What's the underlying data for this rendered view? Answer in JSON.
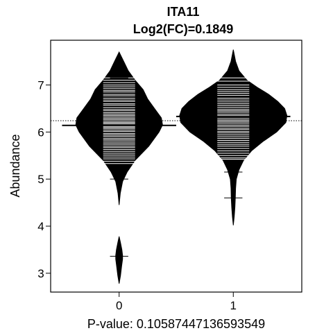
{
  "chart_data": {
    "type": "beanplot",
    "title": "ITA11",
    "subtitle": "Log2(FC)=0.1849",
    "xlabel": "P-value: 0.10587447136593549",
    "ylabel": "Abundance",
    "categories": [
      "0",
      "1"
    ],
    "ylim": [
      2.6,
      7.95
    ],
    "xlim": [
      -0.6,
      1.6
    ],
    "yticks": [
      3,
      4,
      5,
      6,
      7
    ],
    "overall_mean": 6.24,
    "colors": {
      "bean": "#000000",
      "background": "#ffffff",
      "observation_line": "#ffffff"
    },
    "beans": [
      {
        "group": "0",
        "mean": 6.14,
        "segments": [
          {
            "profile": [
              [
                2.78,
                0
              ],
              [
                2.95,
                0.012
              ],
              [
                3.15,
                0.022
              ],
              [
                3.3,
                0.03
              ],
              [
                3.38,
                0.03
              ],
              [
                3.5,
                0.024
              ],
              [
                3.65,
                0.012
              ],
              [
                3.78,
                0
              ]
            ]
          },
          {
            "profile": [
              [
                4.45,
                0
              ],
              [
                4.7,
                0.01
              ],
              [
                4.95,
                0.03
              ],
              [
                5.15,
                0.07
              ],
              [
                5.4,
                0.14
              ],
              [
                5.7,
                0.26
              ],
              [
                6.0,
                0.35
              ],
              [
                6.15,
                0.38
              ],
              [
                6.3,
                0.37
              ],
              [
                6.5,
                0.31
              ],
              [
                6.7,
                0.25
              ],
              [
                6.9,
                0.21
              ],
              [
                7.1,
                0.14
              ],
              [
                7.3,
                0.08
              ],
              [
                7.5,
                0.04
              ],
              [
                7.7,
                0
              ]
            ]
          }
        ],
        "observations": [
          7.15,
          7.1,
          7.05,
          7.0,
          6.96,
          6.92,
          6.88,
          6.85,
          6.8,
          6.77,
          6.72,
          6.68,
          6.65,
          6.6,
          6.57,
          6.52,
          6.48,
          6.45,
          6.41,
          6.38,
          6.35,
          6.32,
          6.29,
          6.26,
          6.23,
          6.2,
          6.18,
          6.15,
          6.12,
          6.1,
          6.07,
          6.04,
          6.01,
          5.97,
          5.94,
          5.91,
          5.87,
          5.84,
          5.81,
          5.77,
          5.74,
          5.7,
          5.67,
          5.63,
          5.59,
          5.55,
          5.51,
          5.47,
          5.43,
          5.38,
          5.33
        ],
        "marks": [
          7.15,
          5.0,
          3.36
        ]
      },
      {
        "group": "1",
        "mean": 6.33,
        "segments": [
          {
            "profile": [
              [
                4.02,
                0
              ],
              [
                4.2,
                0.008
              ],
              [
                4.4,
                0.014
              ],
              [
                4.6,
                0.018
              ],
              [
                4.8,
                0.02
              ],
              [
                5.0,
                0.026
              ],
              [
                5.2,
                0.05
              ],
              [
                5.4,
                0.09
              ],
              [
                5.6,
                0.16
              ],
              [
                5.8,
                0.26
              ],
              [
                6.0,
                0.38
              ],
              [
                6.2,
                0.46
              ],
              [
                6.35,
                0.47
              ],
              [
                6.5,
                0.45
              ],
              [
                6.65,
                0.39
              ],
              [
                6.8,
                0.31
              ],
              [
                6.95,
                0.21
              ],
              [
                7.1,
                0.12
              ],
              [
                7.3,
                0.05
              ],
              [
                7.5,
                0.02
              ],
              [
                7.75,
                0
              ]
            ]
          }
        ],
        "observations": [
          7.15,
          7.08,
          7.0,
          6.95,
          6.9,
          6.86,
          6.82,
          6.78,
          6.72,
          6.68,
          6.64,
          6.6,
          6.56,
          6.52,
          6.48,
          6.45,
          6.42,
          6.38,
          6.35,
          6.32,
          6.28,
          6.25,
          6.22,
          6.19,
          6.15,
          6.12,
          6.08,
          6.05,
          6.01,
          5.98,
          5.94,
          5.9,
          5.86,
          5.82,
          5.78,
          5.74,
          5.7,
          5.65,
          5.6,
          5.55,
          5.5,
          5.45,
          5.42
        ],
        "marks": [
          6.75,
          5.15,
          4.6
        ]
      }
    ]
  }
}
